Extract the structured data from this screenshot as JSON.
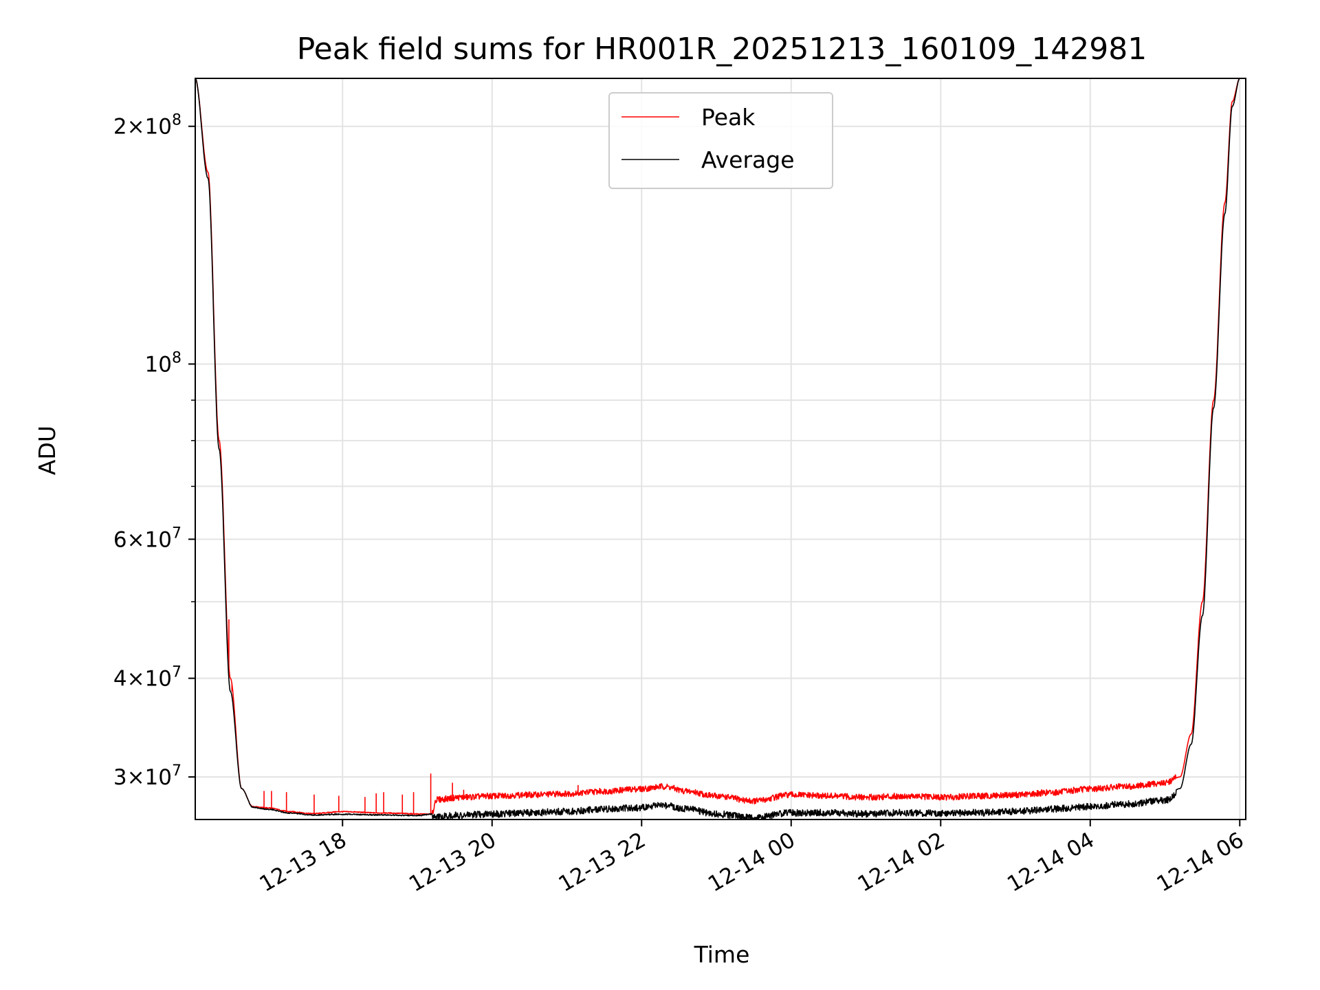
{
  "chart_data": {
    "type": "line",
    "title": "Peak field sums for HR001R_20251213_160109_142981",
    "xlabel": "Time",
    "ylabel": "ADU",
    "yscale": "log",
    "xlim_hours": [
      16.03,
      30.08
    ],
    "ylim": [
      26500000,
      230000000
    ],
    "grid": true,
    "legend_position": "upper center",
    "x_ticks": [
      {
        "hours": 18,
        "label": "12-13 18"
      },
      {
        "hours": 20,
        "label": "12-13 20"
      },
      {
        "hours": 22,
        "label": "12-13 22"
      },
      {
        "hours": 24,
        "label": "12-14 00"
      },
      {
        "hours": 26,
        "label": "12-14 02"
      },
      {
        "hours": 28,
        "label": "12-14 04"
      },
      {
        "hours": 30,
        "label": "12-14 06"
      }
    ],
    "y_ticks": [
      {
        "value": 30000000,
        "mantissa": "3",
        "exponent": "7"
      },
      {
        "value": 40000000,
        "mantissa": "4",
        "exponent": "7"
      },
      {
        "value": 60000000,
        "mantissa": "6",
        "exponent": "7"
      },
      {
        "value": 100000000,
        "mantissa": "",
        "exponent": "8"
      },
      {
        "value": 200000000,
        "mantissa": "2",
        "exponent": "8"
      }
    ],
    "y_minor_ticks": [
      50000000,
      70000000,
      80000000,
      90000000
    ],
    "series": [
      {
        "name": "Peak",
        "color": "#ff0000",
        "x_hours": [
          16.03,
          16.2,
          16.35,
          16.5,
          16.65,
          16.8,
          17.0,
          17.3,
          17.6,
          18.0,
          18.5,
          19.2,
          19.25,
          19.6,
          20.0,
          20.5,
          21.0,
          21.5,
          22.0,
          22.3,
          22.6,
          23.0,
          23.5,
          24.0,
          24.5,
          25.0,
          25.5,
          26.0,
          26.5,
          27.0,
          27.5,
          28.0,
          28.5,
          29.0,
          29.2,
          29.35,
          29.5,
          29.65,
          29.8,
          29.9,
          30.0
        ],
        "values": [
          230000000,
          175000000,
          80000000,
          40000000,
          29000000,
          27500000,
          27400000,
          27100000,
          26950000,
          27100000,
          27000000,
          26900000,
          28000000,
          28200000,
          28300000,
          28400000,
          28500000,
          28700000,
          28900000,
          29100000,
          28700000,
          28300000,
          27900000,
          28400000,
          28300000,
          28200000,
          28300000,
          28200000,
          28300000,
          28400000,
          28600000,
          28900000,
          29100000,
          29400000,
          30000000,
          34000000,
          50000000,
          90000000,
          160000000,
          215000000,
          230000000
        ],
        "spikes": [
          {
            "hours": 16.48,
            "value": 47500000
          },
          {
            "hours": 16.52,
            "value": 38500000
          },
          {
            "hours": 16.95,
            "value": 28800000
          },
          {
            "hours": 17.05,
            "value": 28800000
          },
          {
            "hours": 17.25,
            "value": 28700000
          },
          {
            "hours": 17.62,
            "value": 28500000
          },
          {
            "hours": 17.95,
            "value": 28400000
          },
          {
            "hours": 18.3,
            "value": 28300000
          },
          {
            "hours": 18.45,
            "value": 28600000
          },
          {
            "hours": 18.55,
            "value": 28700000
          },
          {
            "hours": 18.8,
            "value": 28500000
          },
          {
            "hours": 18.95,
            "value": 28700000
          },
          {
            "hours": 19.18,
            "value": 30300000
          },
          {
            "hours": 19.47,
            "value": 29500000
          },
          {
            "hours": 19.62,
            "value": 28900000
          },
          {
            "hours": 21.15,
            "value": 29300000
          }
        ]
      },
      {
        "name": "Average",
        "color": "#000000",
        "x_hours": [
          16.03,
          16.2,
          16.35,
          16.5,
          16.65,
          16.8,
          17.0,
          17.3,
          17.6,
          18.0,
          18.5,
          19.0,
          19.25,
          19.6,
          20.0,
          20.5,
          21.0,
          21.5,
          22.0,
          22.3,
          22.6,
          23.0,
          23.5,
          24.0,
          24.5,
          25.0,
          25.5,
          26.0,
          26.5,
          27.0,
          27.5,
          28.0,
          28.5,
          29.0,
          29.2,
          29.35,
          29.5,
          29.65,
          29.8,
          29.9,
          30.0
        ],
        "values": [
          230000000,
          172000000,
          78000000,
          38500000,
          29000000,
          27500000,
          27350000,
          27050000,
          26900000,
          26950000,
          26900000,
          26850000,
          27000000,
          27100000,
          27200000,
          27300000,
          27400000,
          27600000,
          27700000,
          27900000,
          27600000,
          27200000,
          26900000,
          27300000,
          27300000,
          27200000,
          27300000,
          27250000,
          27300000,
          27400000,
          27600000,
          27800000,
          28000000,
          28300000,
          29000000,
          33000000,
          48000000,
          88000000,
          155000000,
          212000000,
          230000000
        ]
      }
    ]
  }
}
